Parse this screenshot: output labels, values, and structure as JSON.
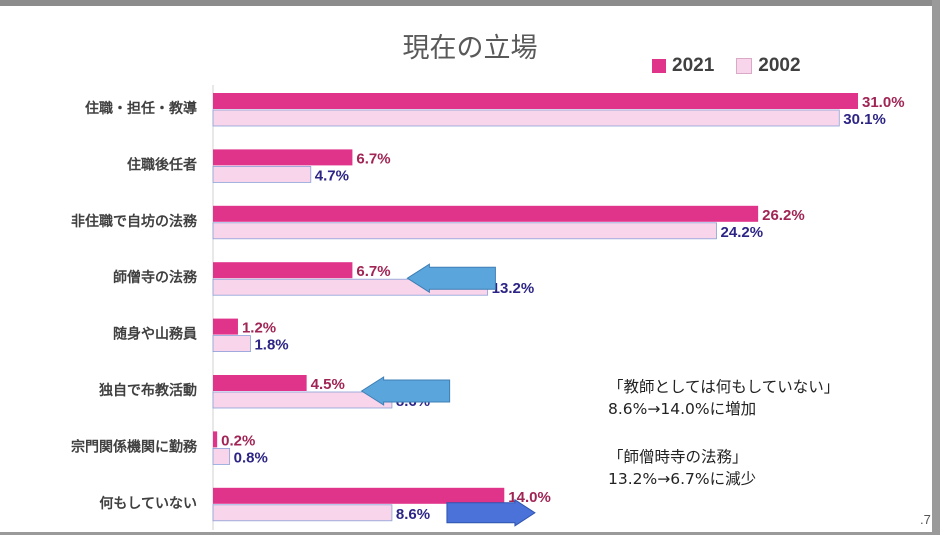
{
  "chart_data": {
    "type": "bar",
    "orientation": "horizontal",
    "title": "現在の立場",
    "categories": [
      "住職・担任・教導",
      "住職後任者",
      "非住職で自坊の法務",
      "師僧寺の法務",
      "随身や山務員",
      "独自で布教活動",
      "宗門関係機関に勤務",
      "何もしていない"
    ],
    "series": [
      {
        "name": "2021",
        "color": "#e0338a",
        "values": [
          31.0,
          6.7,
          26.2,
          6.7,
          1.2,
          4.5,
          0.2,
          14.0
        ],
        "labels": [
          "31.0%",
          "6.7%",
          "26.2%",
          "6.7%",
          "1.2%",
          "4.5%",
          "0.2%",
          "14.0%"
        ],
        "label_color": "#a02555"
      },
      {
        "name": "2002",
        "color": "#f8d5ea",
        "values": [
          30.1,
          4.7,
          24.2,
          13.2,
          1.8,
          8.6,
          0.8,
          8.6
        ],
        "labels": [
          "30.1%",
          "4.7%",
          "24.2%",
          "13.2%",
          "1.8%",
          "8.6%",
          "0.8%",
          "8.6%"
        ],
        "label_color": "#2d2586"
      }
    ],
    "legend_position": "top-right",
    "grid": false,
    "xlim": [
      0,
      31.0
    ],
    "annotation_arrows": [
      {
        "category": "師僧寺の法務",
        "direction": "left",
        "color": "#5aa6dc"
      },
      {
        "category": "独自で布教活動",
        "direction": "left",
        "color": "#5aa6dc"
      },
      {
        "category": "何もしていない",
        "direction": "right",
        "color": "#4a72d8"
      }
    ]
  },
  "notes": [
    {
      "line1": "「教師としては何もしていない」",
      "line2": "8.6%→14.0%に増加"
    },
    {
      "line1": "「師僧時寺の法務」",
      "line2": "13.2%→6.7%に減少"
    }
  ],
  "page_number": ".7"
}
